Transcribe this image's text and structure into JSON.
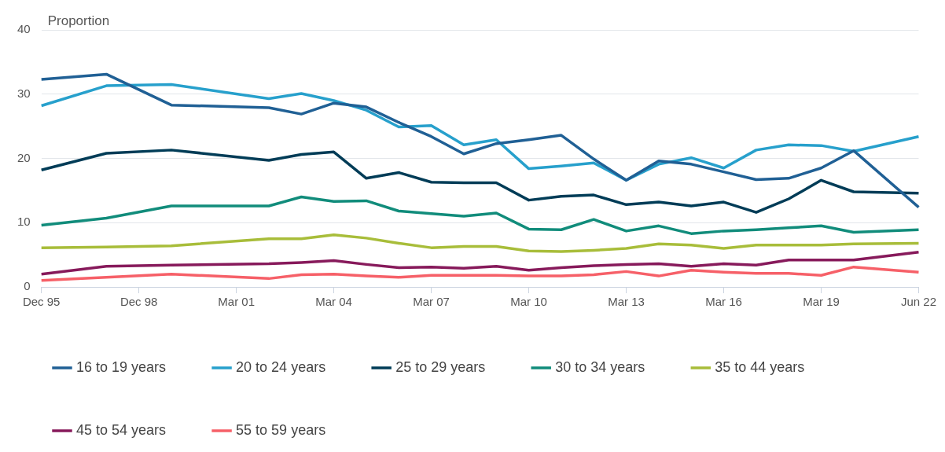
{
  "chart_data": {
    "type": "line",
    "ylabel": "Proportion",
    "categories": [
      "Dec 95",
      null,
      null,
      "Dec 98",
      null,
      null,
      "Mar 01",
      null,
      null,
      "Mar 04",
      null,
      null,
      "Mar 07",
      null,
      null,
      "Mar 10",
      null,
      null,
      "Mar 13",
      null,
      null,
      "Mar 16",
      null,
      null,
      "Mar 19",
      null,
      null,
      "Jun 22"
    ],
    "series": [
      {
        "name": "16 to 19 years",
        "color": "#206095",
        "values": [
          32.3,
          null,
          33.1,
          null,
          28.3,
          null,
          null,
          27.9,
          26.9,
          28.6,
          28.0,
          25.6,
          23.4,
          20.7,
          22.3,
          22.9,
          23.6,
          19.9,
          16.6,
          19.6,
          19.1,
          17.9,
          16.7,
          16.9,
          18.5,
          21.2,
          null,
          12.4
        ]
      },
      {
        "name": "20 to 24 years",
        "color": "#27a0cc",
        "values": [
          28.2,
          null,
          31.3,
          null,
          31.5,
          null,
          null,
          29.3,
          30.1,
          29.0,
          27.5,
          24.9,
          25.1,
          22.1,
          22.9,
          18.4,
          18.8,
          19.3,
          16.6,
          19.1,
          20.1,
          18.5,
          21.3,
          22.1,
          22.0,
          21.1,
          null,
          23.4
        ]
      },
      {
        "name": "25 to 29 years",
        "color": "#003c57",
        "values": [
          18.2,
          null,
          20.8,
          null,
          21.3,
          null,
          null,
          19.7,
          20.6,
          21.0,
          16.9,
          17.8,
          16.3,
          16.2,
          16.2,
          13.5,
          14.1,
          14.3,
          12.8,
          13.2,
          12.6,
          13.2,
          11.6,
          13.7,
          16.6,
          14.8,
          null,
          14.6
        ]
      },
      {
        "name": "30 to 34 years",
        "color": "#118c7b",
        "values": [
          9.6,
          null,
          10.7,
          null,
          12.6,
          null,
          null,
          12.6,
          14.0,
          13.3,
          13.4,
          11.8,
          11.4,
          11.0,
          11.5,
          9.0,
          8.9,
          10.5,
          8.7,
          9.5,
          8.3,
          8.7,
          8.9,
          9.2,
          9.5,
          8.5,
          null,
          8.9
        ]
      },
      {
        "name": "35 to 44 years",
        "color": "#a8bd3a",
        "values": [
          6.1,
          null,
          6.2,
          null,
          6.4,
          null,
          null,
          7.5,
          7.5,
          8.1,
          7.6,
          6.8,
          6.1,
          6.3,
          6.3,
          5.6,
          5.5,
          5.7,
          6.0,
          6.7,
          6.5,
          6.0,
          6.5,
          6.5,
          6.5,
          6.7,
          null,
          6.8
        ]
      },
      {
        "name": "45 to 54 years",
        "color": "#871a5b",
        "values": [
          2.0,
          null,
          3.2,
          null,
          3.4,
          null,
          null,
          3.6,
          3.8,
          4.1,
          3.5,
          3.0,
          3.1,
          2.9,
          3.2,
          2.6,
          3.0,
          3.3,
          3.5,
          3.6,
          3.2,
          3.6,
          3.4,
          4.2,
          4.2,
          4.2,
          null,
          5.4
        ]
      },
      {
        "name": "55 to 59 years",
        "color": "#f66068",
        "values": [
          1.0,
          null,
          1.5,
          null,
          2.0,
          null,
          null,
          1.3,
          1.9,
          2.0,
          1.7,
          1.5,
          1.8,
          1.8,
          1.8,
          1.7,
          1.7,
          1.9,
          2.4,
          1.7,
          2.6,
          2.3,
          2.1,
          2.1,
          1.8,
          3.1,
          null,
          2.3
        ]
      }
    ],
    "ylim": [
      0,
      40
    ],
    "yticks": [
      0,
      10,
      20,
      30,
      40
    ],
    "grid": "y",
    "legend": "bottom",
    "marker": "none"
  }
}
